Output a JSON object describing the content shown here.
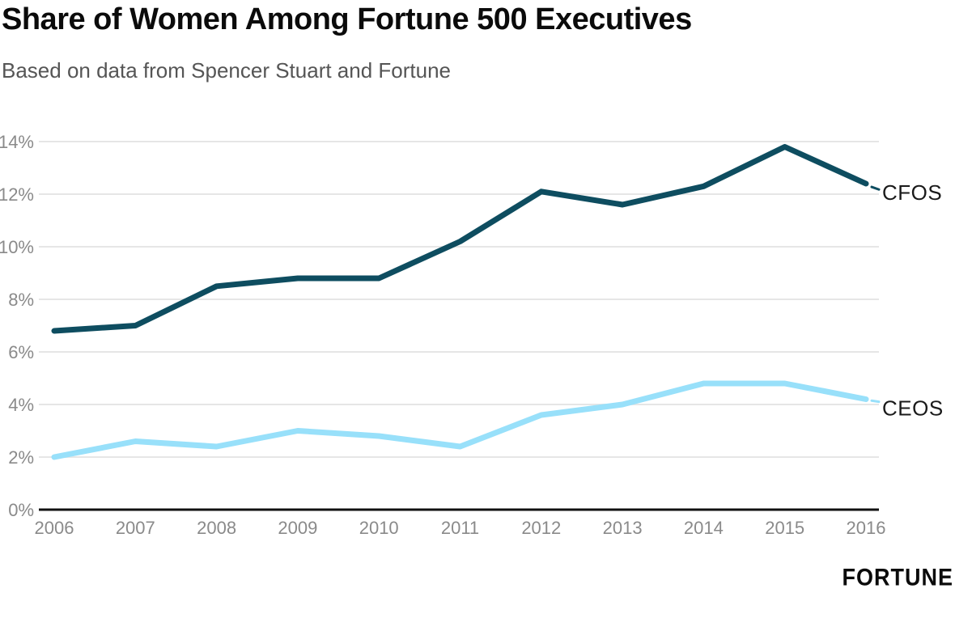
{
  "header": {
    "title": "Share of Women Among Fortune 500 Executives",
    "subtitle": "Based on data from Spencer Stuart and Fortune"
  },
  "branding": {
    "logo_text": "FORTUNE"
  },
  "chart_data": {
    "type": "line",
    "title": "Share of Women Among Fortune 500 Executives",
    "subtitle": "Based on data from Spencer Stuart and Fortune",
    "categories": [
      "2006",
      "2007",
      "2008",
      "2009",
      "2010",
      "2011",
      "2012",
      "2013",
      "2014",
      "2015",
      "2016"
    ],
    "series": [
      {
        "name": "CFOS",
        "color": "#0e4d60",
        "values": [
          6.8,
          7.0,
          8.5,
          8.8,
          8.8,
          10.2,
          12.1,
          11.6,
          12.3,
          13.8,
          12.4
        ]
      },
      {
        "name": "CEOS",
        "color": "#98e0fa",
        "values": [
          2.0,
          2.6,
          2.4,
          3.0,
          2.8,
          2.4,
          3.6,
          4.0,
          4.8,
          4.8,
          4.2
        ]
      }
    ],
    "xlabel": "",
    "ylabel": "",
    "ylim": [
      0,
      14
    ],
    "y_ticks": [
      {
        "value": 0,
        "label": "0%"
      },
      {
        "value": 2,
        "label": "2%"
      },
      {
        "value": 4,
        "label": "4%"
      },
      {
        "value": 6,
        "label": "6%"
      },
      {
        "value": 8,
        "label": "8%"
      },
      {
        "value": 10,
        "label": "10%"
      },
      {
        "value": 12,
        "label": "12%"
      },
      {
        "value": 14,
        "label": "14%"
      }
    ],
    "grid": "horizontal",
    "legend_position": "end-of-line-labels",
    "colors": {
      "grid": "#e6e6e6",
      "axis": "#111111",
      "tick_label": "#8a8a8a"
    }
  }
}
